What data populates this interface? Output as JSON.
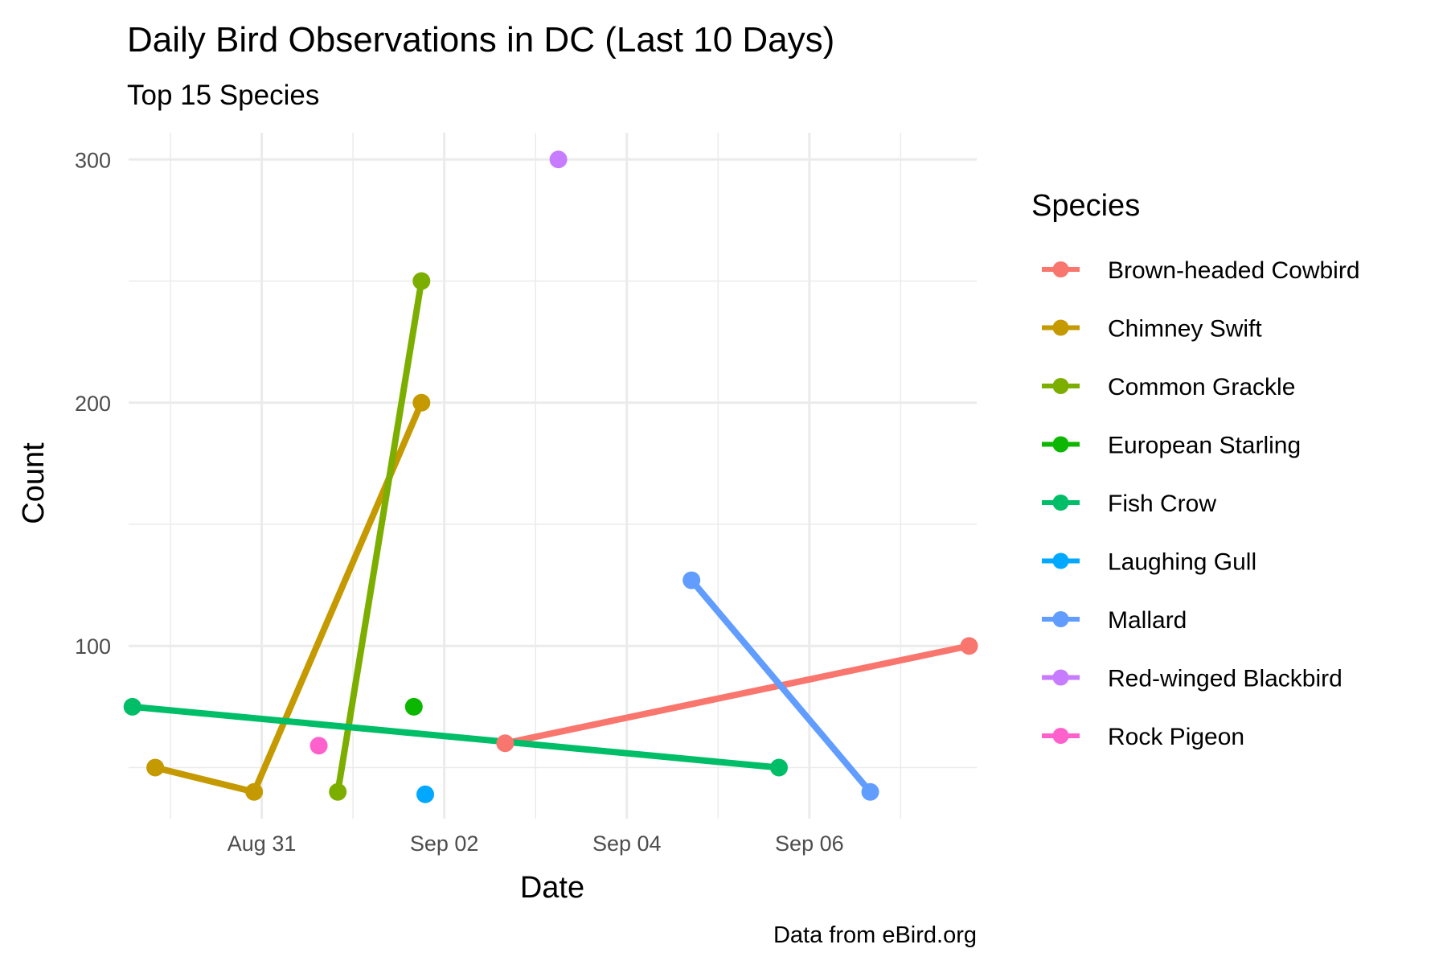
{
  "chart_data": {
    "type": "line",
    "title": "Daily Bird Observations in DC (Last 10 Days)",
    "subtitle": "Top 15 Species",
    "xlabel": "Date",
    "ylabel": "Count",
    "caption": "Data from eBird.org",
    "legend_title": "Species",
    "legend_position": "right",
    "grid": true,
    "x_type": "date",
    "xlim": [
      "2024-08-29T13:00",
      "2024-09-07T20:00"
    ],
    "ylim": [
      29,
      311
    ],
    "x_ticks": [
      {
        "date": "2024-08-31T00:00",
        "label": "Aug 31"
      },
      {
        "date": "2024-09-02T00:00",
        "label": "Sep 02"
      },
      {
        "date": "2024-09-04T00:00",
        "label": "Sep 04"
      },
      {
        "date": "2024-09-06T00:00",
        "label": "Sep 06"
      }
    ],
    "y_ticks": [
      100,
      200,
      300
    ],
    "series": [
      {
        "name": "Brown-headed Cowbird",
        "color": "#F8766D",
        "points": [
          {
            "x": "2024-09-02T16:00",
            "y": 60
          },
          {
            "x": "2024-09-07T18:00",
            "y": 100
          }
        ]
      },
      {
        "name": "Chimney Swift",
        "color": "#C49A00",
        "points": [
          {
            "x": "2024-08-29T20:00",
            "y": 50
          },
          {
            "x": "2024-08-30T22:00",
            "y": 40
          },
          {
            "x": "2024-09-01T18:00",
            "y": 200
          }
        ]
      },
      {
        "name": "Common Grackle",
        "color": "#7CAE00",
        "points": [
          {
            "x": "2024-08-31T20:00",
            "y": 40
          },
          {
            "x": "2024-09-01T18:00",
            "y": 250
          }
        ]
      },
      {
        "name": "European Starling",
        "color": "#0CB702",
        "points": [
          {
            "x": "2024-09-01T16:00",
            "y": 75
          }
        ]
      },
      {
        "name": "Fish Crow",
        "color": "#00BE67",
        "points": [
          {
            "x": "2024-08-29T14:00",
            "y": 75
          },
          {
            "x": "2024-09-05T16:00",
            "y": 50
          }
        ]
      },
      {
        "name": "Laughing Gull",
        "color": "#00A9FF",
        "points": [
          {
            "x": "2024-09-01T19:00",
            "y": 39
          }
        ]
      },
      {
        "name": "Mallard",
        "color": "#619CFF",
        "points": [
          {
            "x": "2024-09-04T17:00",
            "y": 127
          },
          {
            "x": "2024-09-06T16:00",
            "y": 40
          }
        ]
      },
      {
        "name": "Red-winged Blackbird",
        "color": "#C77CFF",
        "points": [
          {
            "x": "2024-09-03T06:00",
            "y": 300
          }
        ]
      },
      {
        "name": "Rock Pigeon",
        "color": "#FF61CC",
        "points": [
          {
            "x": "2024-08-31T15:00",
            "y": 59
          }
        ]
      }
    ]
  }
}
